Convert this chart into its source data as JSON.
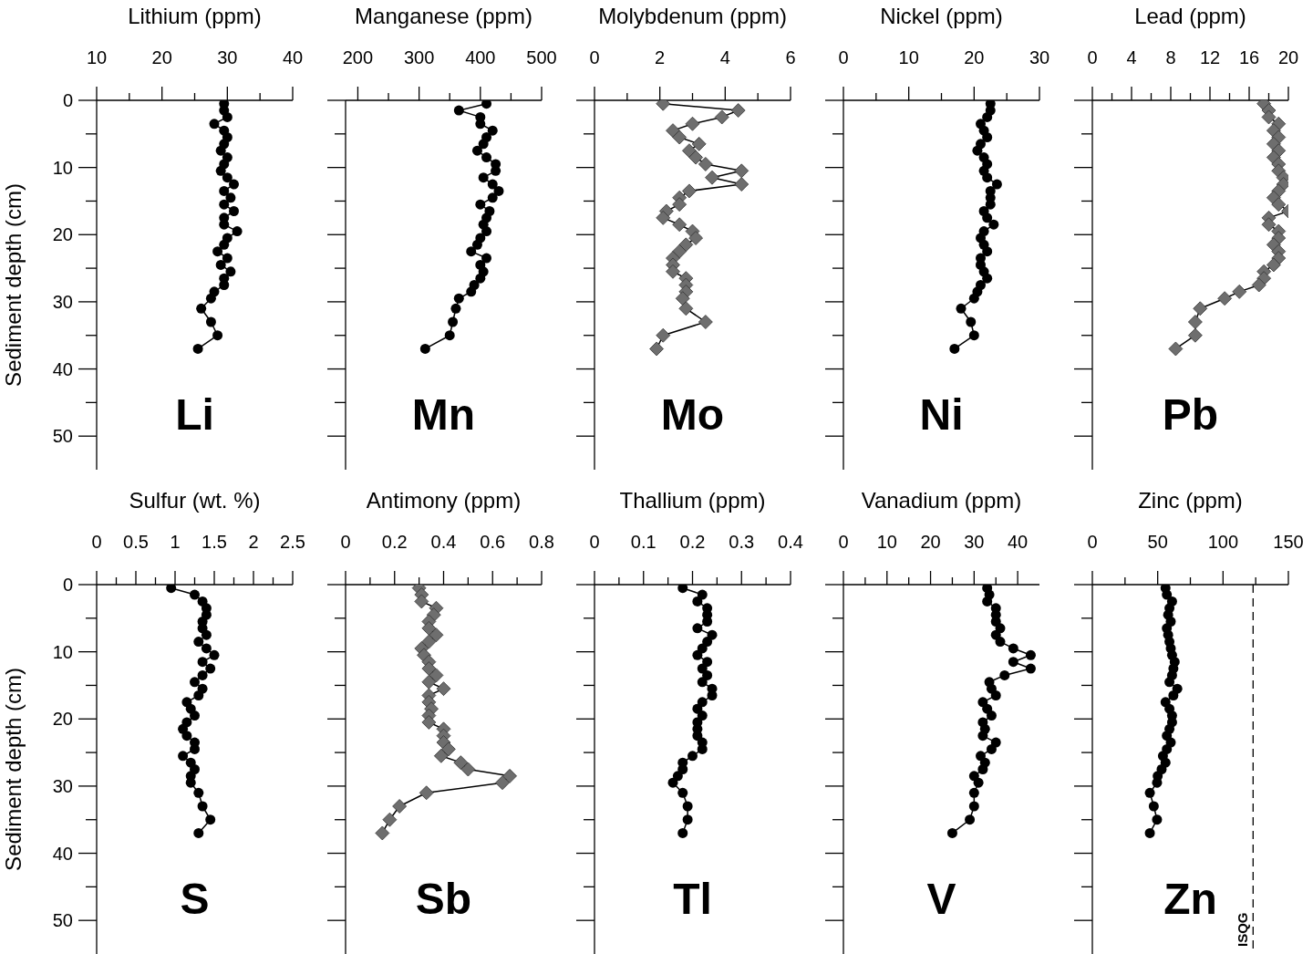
{
  "chart_data": [
    {
      "type": "line",
      "title": "Lithium (ppm)",
      "ylabel": "Sediment depth (cm)",
      "annotations": [
        "Li"
      ],
      "color": "#000000",
      "marker": "circle",
      "xlim": [
        10,
        40
      ],
      "xticks": [
        10,
        {
          "value": 15,
          "label": null
        },
        20,
        {
          "value": 25,
          "label": null
        },
        30,
        {
          "value": 35,
          "label": null
        },
        40
      ],
      "ylim": [
        55,
        0
      ],
      "yticks": [
        0,
        {
          "value": 5,
          "label": null
        },
        10,
        {
          "value": 15,
          "label": null
        },
        20,
        {
          "value": 25,
          "label": null
        },
        30,
        {
          "value": 35,
          "label": null
        },
        40,
        {
          "value": 45,
          "label": null
        },
        50
      ],
      "x": [
        29.5,
        29.5,
        30,
        28,
        29.5,
        30,
        29.5,
        29,
        30,
        29.5,
        29,
        30,
        31,
        29.5,
        30.5,
        29.5,
        31,
        29.5,
        29.5,
        31.5,
        30,
        29.5,
        28.5,
        30,
        29,
        30.5,
        29.5,
        29.5,
        28,
        27.5,
        26,
        27.5,
        28.5,
        25.5
      ],
      "values": [
        0.5,
        1.5,
        2.5,
        3.5,
        4.5,
        5.5,
        6.5,
        7.5,
        8.5,
        9.5,
        10.5,
        11.5,
        12.5,
        13.5,
        14.5,
        15.5,
        16.5,
        17.5,
        18.5,
        19.5,
        20.5,
        21.5,
        22.5,
        23.5,
        24.5,
        25.5,
        26.5,
        27.5,
        28.5,
        29.5,
        31,
        33,
        35,
        37
      ]
    },
    {
      "type": "line",
      "title": "Manganese (ppm)",
      "annotations": [
        "Mn"
      ],
      "color": "#000000",
      "marker": "circle",
      "tick_labels": "x",
      "xlim": [
        180,
        500
      ],
      "xticks": [
        200,
        {
          "value": 250,
          "label": null
        },
        300,
        {
          "value": 350,
          "label": null
        },
        400,
        {
          "value": 450,
          "label": null
        },
        500
      ],
      "ylim": [
        55,
        0
      ],
      "yticks": [
        0,
        {
          "value": 5,
          "label": null
        },
        10,
        {
          "value": 15,
          "label": null
        },
        20,
        {
          "value": 25,
          "label": null
        },
        30,
        {
          "value": 35,
          "label": null
        },
        40,
        {
          "value": 45,
          "label": null
        },
        50
      ],
      "x": [
        410,
        365,
        400,
        400,
        420,
        410,
        405,
        395,
        410,
        425,
        425,
        405,
        420,
        430,
        420,
        400,
        415,
        410,
        405,
        410,
        400,
        395,
        385,
        410,
        400,
        405,
        400,
        390,
        385,
        365,
        360,
        355,
        350,
        310
      ],
      "values": [
        0.5,
        1.5,
        2.5,
        3.5,
        4.5,
        5.5,
        6.5,
        7.5,
        8.5,
        9.5,
        10.5,
        11.5,
        12.5,
        13.5,
        14.5,
        15.5,
        16.5,
        17.5,
        18.5,
        19.5,
        20.5,
        21.5,
        22.5,
        23.5,
        24.5,
        25.5,
        26.5,
        27.5,
        28.5,
        29.5,
        31,
        33,
        35,
        37
      ]
    },
    {
      "type": "line",
      "title": "Molybdenum (ppm)",
      "annotations": [
        "Mo"
      ],
      "color": "#6e6e6e",
      "marker": "diamond",
      "tick_labels": "x",
      "xlim": [
        0,
        6
      ],
      "xticks": [
        0,
        {
          "value": 1,
          "label": null
        },
        2,
        {
          "value": 3,
          "label": null
        },
        4,
        {
          "value": 5,
          "label": null
        },
        6
      ],
      "ylim": [
        55,
        0
      ],
      "yticks": [
        0,
        {
          "value": 5,
          "label": null
        },
        10,
        {
          "value": 15,
          "label": null
        },
        20,
        {
          "value": 25,
          "label": null
        },
        30,
        {
          "value": 35,
          "label": null
        },
        40,
        {
          "value": 45,
          "label": null
        },
        50
      ],
      "x": [
        2.1,
        4.4,
        3.9,
        3.0,
        2.4,
        2.6,
        3.2,
        2.9,
        3.1,
        3.4,
        4.5,
        3.6,
        4.5,
        2.9,
        2.6,
        2.6,
        2.2,
        2.1,
        2.6,
        3.0,
        3.1,
        2.8,
        2.6,
        2.4,
        2.4,
        2.4,
        2.8,
        2.8,
        2.8,
        2.7,
        2.8,
        3.4,
        2.1,
        1.9
      ],
      "values": [
        0.5,
        1.5,
        2.5,
        3.5,
        4.5,
        5.5,
        6.5,
        7.5,
        8.5,
        9.5,
        10.5,
        11.5,
        12.5,
        13.5,
        14.5,
        15.5,
        16.5,
        17.5,
        18.5,
        19.5,
        20.5,
        21.5,
        22.5,
        23.5,
        24.5,
        25.5,
        26.5,
        27.5,
        28.5,
        29.5,
        31,
        33,
        35,
        37
      ]
    },
    {
      "type": "line",
      "title": "Nickel (ppm)",
      "annotations": [
        "Ni"
      ],
      "color": "#000000",
      "marker": "circle",
      "tick_labels": "x",
      "xlim": [
        0,
        30
      ],
      "xticks": [
        0,
        {
          "value": 5,
          "label": null
        },
        10,
        {
          "value": 15,
          "label": null
        },
        20,
        {
          "value": 25,
          "label": null
        },
        30
      ],
      "ylim": [
        55,
        0
      ],
      "yticks": [
        0,
        {
          "value": 5,
          "label": null
        },
        10,
        {
          "value": 15,
          "label": null
        },
        20,
        {
          "value": 25,
          "label": null
        },
        30,
        {
          "value": 35,
          "label": null
        },
        40,
        {
          "value": 45,
          "label": null
        },
        50
      ],
      "x": [
        22.5,
        22.5,
        22,
        21,
        21.5,
        22,
        21,
        20.5,
        21.5,
        22,
        21.5,
        22,
        23.5,
        22.5,
        22.5,
        22.5,
        21.5,
        22,
        23,
        21.5,
        21,
        21.5,
        22,
        21,
        21,
        21.5,
        22,
        21,
        20.5,
        20,
        18,
        19.5,
        20,
        17
      ],
      "values": [
        0.5,
        1.5,
        2.5,
        3.5,
        4.5,
        5.5,
        6.5,
        7.5,
        8.5,
        9.5,
        10.5,
        11.5,
        12.5,
        13.5,
        14.5,
        15.5,
        16.5,
        17.5,
        18.5,
        19.5,
        20.5,
        21.5,
        22.5,
        23.5,
        24.5,
        25.5,
        26.5,
        27.5,
        28.5,
        29.5,
        31,
        33,
        35,
        37
      ]
    },
    {
      "type": "line",
      "title": "Lead (ppm)",
      "annotations": [
        "Pb"
      ],
      "color": "#6e6e6e",
      "marker": "diamond",
      "tick_labels": "x",
      "xlim": [
        0,
        20
      ],
      "xticks": [
        0,
        {
          "value": 2,
          "label": null
        },
        4,
        {
          "value": 6,
          "label": null
        },
        8,
        {
          "value": 10,
          "label": null
        },
        12,
        {
          "value": 14,
          "label": null
        },
        16,
        {
          "value": 18,
          "label": null
        },
        20
      ],
      "ylim": [
        55,
        0
      ],
      "yticks": [
        0,
        {
          "value": 5,
          "label": null
        },
        10,
        {
          "value": 15,
          "label": null
        },
        20,
        {
          "value": 25,
          "label": null
        },
        30,
        {
          "value": 35,
          "label": null
        },
        40,
        {
          "value": 45,
          "label": null
        },
        50
      ],
      "x": [
        17.5,
        18,
        18,
        19,
        18.5,
        19,
        18.5,
        19,
        18.5,
        19,
        19,
        19.5,
        19.5,
        19,
        18.5,
        19,
        20,
        18,
        18,
        19,
        19,
        18.5,
        19,
        19,
        18.5,
        17.5,
        17.5,
        17,
        15,
        13.5,
        11,
        10.5,
        10.5,
        8.5
      ],
      "values": [
        0.5,
        1.5,
        2.5,
        3.5,
        4.5,
        5.5,
        6.5,
        7.5,
        8.5,
        9.5,
        10.5,
        11.5,
        12.5,
        13.5,
        14.5,
        15.5,
        16.5,
        17.5,
        18.5,
        19.5,
        20.5,
        21.5,
        22.5,
        23.5,
        24.5,
        25.5,
        26.5,
        27.5,
        28.5,
        29.5,
        31,
        33,
        35,
        37
      ]
    },
    {
      "type": "line",
      "title": "Sulfur (wt. %)",
      "ylabel": "Sediment depth (cm)",
      "annotations": [
        "S"
      ],
      "color": "#000000",
      "marker": "circle",
      "xlim": [
        0,
        2.5
      ],
      "xticks": [
        0,
        {
          "value": 0.25,
          "label": null
        },
        0.5,
        {
          "value": 0.75,
          "label": null
        },
        1,
        {
          "value": 1.25,
          "label": null
        },
        1.5,
        {
          "value": 1.75,
          "label": null
        },
        2,
        {
          "value": 2.25,
          "label": null
        },
        2.5
      ],
      "ylim": [
        55,
        0
      ],
      "yticks": [
        0,
        {
          "value": 5,
          "label": null
        },
        10,
        {
          "value": 15,
          "label": null
        },
        20,
        {
          "value": 25,
          "label": null
        },
        30,
        {
          "value": 35,
          "label": null
        },
        40,
        {
          "value": 45,
          "label": null
        },
        50
      ],
      "x": [
        0.95,
        1.25,
        1.35,
        1.4,
        1.4,
        1.35,
        1.35,
        1.4,
        1.3,
        1.4,
        1.5,
        1.35,
        1.45,
        1.35,
        1.25,
        1.35,
        1.3,
        1.15,
        1.2,
        1.25,
        1.15,
        1.1,
        1.15,
        1.25,
        1.25,
        1.1,
        1.2,
        1.25,
        1.2,
        1.2,
        1.3,
        1.35,
        1.45,
        1.3
      ],
      "values": [
        0.5,
        1.5,
        2.5,
        3.5,
        4.5,
        5.5,
        6.5,
        7.5,
        8.5,
        9.5,
        10.5,
        11.5,
        12.5,
        13.5,
        14.5,
        15.5,
        16.5,
        17.5,
        18.5,
        19.5,
        20.5,
        21.5,
        22.5,
        23.5,
        24.5,
        25.5,
        26.5,
        27.5,
        28.5,
        29.5,
        31,
        33,
        35,
        37
      ]
    },
    {
      "type": "line",
      "title": "Antimony (ppm)",
      "annotations": [
        "Sb"
      ],
      "color": "#6e6e6e",
      "marker": "diamond",
      "tick_labels": "x",
      "xlim": [
        0,
        0.8
      ],
      "xticks": [
        0,
        {
          "value": 0.1,
          "label": null
        },
        0.2,
        {
          "value": 0.3,
          "label": null
        },
        0.4,
        {
          "value": 0.5,
          "label": null
        },
        0.6,
        {
          "value": 0.7,
          "label": null
        },
        0.8
      ],
      "ylim": [
        55,
        0
      ],
      "yticks": [
        0,
        {
          "value": 5,
          "label": null
        },
        10,
        {
          "value": 15,
          "label": null
        },
        20,
        {
          "value": 25,
          "label": null
        },
        30,
        {
          "value": 35,
          "label": null
        },
        40,
        {
          "value": 45,
          "label": null
        },
        50
      ],
      "x": [
        0.3,
        0.31,
        0.31,
        0.37,
        0.36,
        0.34,
        0.34,
        0.37,
        0.34,
        0.31,
        0.32,
        0.34,
        0.34,
        0.37,
        0.34,
        0.4,
        0.34,
        0.34,
        0.35,
        0.34,
        0.34,
        0.4,
        0.4,
        0.4,
        0.42,
        0.39,
        0.47,
        0.5,
        0.67,
        0.64,
        0.33,
        0.22,
        0.18,
        0.15
      ],
      "values": [
        0.5,
        1.5,
        2.5,
        3.5,
        4.5,
        5.5,
        6.5,
        7.5,
        8.5,
        9.5,
        10.5,
        11.5,
        12.5,
        13.5,
        14.5,
        15.5,
        16.5,
        17.5,
        18.5,
        19.5,
        20.5,
        21.5,
        22.5,
        23.5,
        24.5,
        25.5,
        26.5,
        27.5,
        28.5,
        29.5,
        31,
        33,
        35,
        37
      ]
    },
    {
      "type": "line",
      "title": "Thallium (ppm)",
      "annotations": [
        "Tl"
      ],
      "color": "#000000",
      "marker": "circle",
      "tick_labels": "x",
      "xlim": [
        0,
        0.4
      ],
      "xticks": [
        0,
        {
          "value": 0.05,
          "label": null
        },
        0.1,
        {
          "value": 0.15,
          "label": null
        },
        0.2,
        {
          "value": 0.25,
          "label": null
        },
        0.3,
        {
          "value": 0.35,
          "label": null
        },
        0.4
      ],
      "ylim": [
        55,
        0
      ],
      "yticks": [
        0,
        {
          "value": 5,
          "label": null
        },
        10,
        {
          "value": 15,
          "label": null
        },
        20,
        {
          "value": 25,
          "label": null
        },
        30,
        {
          "value": 35,
          "label": null
        },
        40,
        {
          "value": 45,
          "label": null
        },
        50
      ],
      "x": [
        0.18,
        0.22,
        0.21,
        0.23,
        0.23,
        0.23,
        0.21,
        0.24,
        0.23,
        0.22,
        0.21,
        0.23,
        0.22,
        0.23,
        0.22,
        0.24,
        0.24,
        0.22,
        0.21,
        0.22,
        0.21,
        0.21,
        0.21,
        0.22,
        0.22,
        0.2,
        0.18,
        0.18,
        0.17,
        0.16,
        0.18,
        0.19,
        0.19,
        0.18
      ],
      "values": [
        0.5,
        1.5,
        2.5,
        3.5,
        4.5,
        5.5,
        6.5,
        7.5,
        8.5,
        9.5,
        10.5,
        11.5,
        12.5,
        13.5,
        14.5,
        15.5,
        16.5,
        17.5,
        18.5,
        19.5,
        20.5,
        21.5,
        22.5,
        23.5,
        24.5,
        25.5,
        26.5,
        27.5,
        28.5,
        29.5,
        31,
        33,
        35,
        37
      ]
    },
    {
      "type": "line",
      "title": "Vanadium (ppm)",
      "annotations": [
        "V"
      ],
      "color": "#000000",
      "marker": "circle",
      "tick_labels": "x",
      "xlim": [
        0,
        45
      ],
      "xticks": [
        0,
        {
          "value": 5,
          "label": null
        },
        10,
        {
          "value": 15,
          "label": null
        },
        20,
        {
          "value": 25,
          "label": null
        },
        30,
        {
          "value": 35,
          "label": null
        },
        40
      ],
      "ylim": [
        55,
        0
      ],
      "yticks": [
        0,
        {
          "value": 5,
          "label": null
        },
        10,
        {
          "value": 15,
          "label": null
        },
        20,
        {
          "value": 25,
          "label": null
        },
        30,
        {
          "value": 35,
          "label": null
        },
        40,
        {
          "value": 45,
          "label": null
        },
        50
      ],
      "x": [
        33,
        33.5,
        33,
        35,
        35,
        35,
        36,
        35,
        36,
        39,
        43,
        39,
        43,
        37,
        33.5,
        34,
        35,
        32,
        33,
        34,
        32,
        32.5,
        32,
        35,
        34,
        31.5,
        32.5,
        32,
        30,
        31,
        30,
        30,
        29,
        25
      ],
      "values": [
        0.5,
        1.5,
        2.5,
        3.5,
        4.5,
        5.5,
        6.5,
        7.5,
        8.5,
        9.5,
        10.5,
        11.5,
        12.5,
        13.5,
        14.5,
        15.5,
        16.5,
        17.5,
        18.5,
        19.5,
        20.5,
        21.5,
        22.5,
        23.5,
        24.5,
        25.5,
        26.5,
        27.5,
        28.5,
        29.5,
        31,
        33,
        35,
        37
      ]
    },
    {
      "type": "line",
      "title": "Zinc (ppm)",
      "annotations": [
        "Zn"
      ],
      "color": "#000000",
      "marker": "circle",
      "tick_labels": "x",
      "xlim": [
        0,
        150
      ],
      "xticks": [
        0,
        {
          "value": 25,
          "label": null
        },
        50,
        {
          "value": 75,
          "label": null
        },
        100,
        {
          "value": 125,
          "label": null
        },
        150
      ],
      "ylim": [
        55,
        0
      ],
      "yticks": [
        0,
        {
          "value": 5,
          "label": null
        },
        10,
        {
          "value": 15,
          "label": null
        },
        20,
        {
          "value": 25,
          "label": null
        },
        30,
        {
          "value": 35,
          "label": null
        },
        40,
        {
          "value": 45,
          "label": null
        },
        50
      ],
      "ref_lines": [
        {
          "axis": "x",
          "value": 123,
          "label": "ISQG",
          "line_style": "dashed"
        }
      ],
      "x": [
        56,
        57,
        61,
        59,
        58,
        60,
        57,
        58,
        59,
        60,
        61,
        63,
        62,
        61,
        59,
        65,
        62,
        56,
        59,
        61,
        61,
        59,
        57,
        60,
        57,
        54,
        56,
        53,
        50,
        49.5,
        44,
        47,
        49.5,
        44
      ],
      "values": [
        0.5,
        1.5,
        2.5,
        3.5,
        4.5,
        5.5,
        6.5,
        7.5,
        8.5,
        9.5,
        10.5,
        11.5,
        12.5,
        13.5,
        14.5,
        15.5,
        16.5,
        17.5,
        18.5,
        19.5,
        20.5,
        21.5,
        22.5,
        23.5,
        24.5,
        25.5,
        26.5,
        27.5,
        28.5,
        29.5,
        31,
        33,
        35,
        37
      ]
    }
  ]
}
